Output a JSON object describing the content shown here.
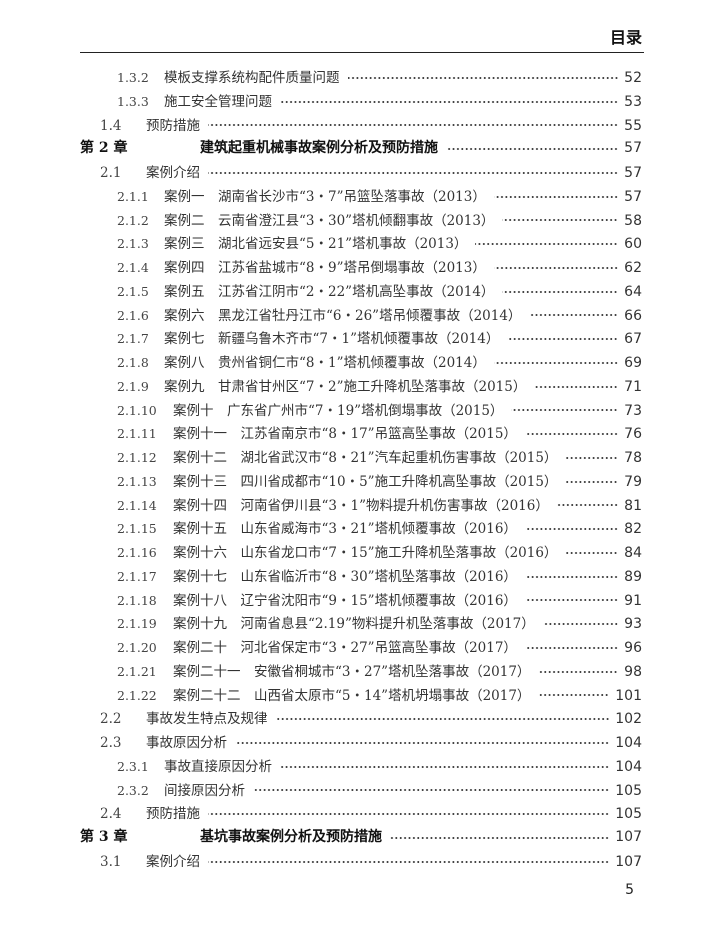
{
  "header": {
    "title": "目录"
  },
  "toc": [
    {
      "level": 2,
      "num": "1.3.2",
      "title": "模板支撑系统构配件质量问题",
      "page": "52"
    },
    {
      "level": 2,
      "num": "1.3.3",
      "title": "施工安全管理问题",
      "page": "53"
    },
    {
      "level": 1,
      "num": "1.4",
      "title": "预防措施",
      "page": "55"
    },
    {
      "level": 0,
      "num": "第 2 章",
      "title": "建筑起重机械事故案例分析及预防措施",
      "page": "57"
    },
    {
      "level": 1,
      "num": "2.1",
      "title": "案例介绍",
      "page": "57"
    },
    {
      "level": 2,
      "num": "2.1.1",
      "title": "案例一　湖南省长沙市“3・7”吊篮坠落事故（2013）",
      "page": "57"
    },
    {
      "level": 2,
      "num": "2.1.2",
      "title": "案例二　云南省澄江县“3・30”塔机倾翻事故（2013）",
      "page": "58"
    },
    {
      "level": 2,
      "num": "2.1.3",
      "title": "案例三　湖北省远安县“5・21”塔机事故（2013）",
      "page": "60"
    },
    {
      "level": 2,
      "num": "2.1.4",
      "title": "案例四　江苏省盐城市“8・9”塔吊倒塌事故（2013）",
      "page": "62"
    },
    {
      "level": 2,
      "num": "2.1.5",
      "title": "案例五　江苏省江阴市“2・22”塔机高坠事故（2014）",
      "page": "64"
    },
    {
      "level": 2,
      "num": "2.1.6",
      "title": "案例六　黑龙江省牡丹江市“6・26”塔吊倾覆事故（2014）",
      "page": "66"
    },
    {
      "level": 2,
      "num": "2.1.7",
      "title": "案例七　新疆乌鲁木齐市“7・1”塔机倾覆事故（2014）",
      "page": "67"
    },
    {
      "level": 2,
      "num": "2.1.8",
      "title": "案例八　贵州省铜仁市“8・1”塔机倾覆事故（2014）",
      "page": "69"
    },
    {
      "level": 2,
      "num": "2.1.9",
      "title": "案例九　甘肃省甘州区“7・2”施工升降机坠落事故（2015）",
      "page": "71"
    },
    {
      "level": 2,
      "num": "2.1.10",
      "title": "案例十　广东省广州市“7・19”塔机倒塌事故（2015）",
      "page": "73"
    },
    {
      "level": 2,
      "num": "2.1.11",
      "title": "案例十一　江苏省南京市“8・17”吊篮高坠事故（2015）",
      "page": "76"
    },
    {
      "level": 2,
      "num": "2.1.12",
      "title": "案例十二　湖北省武汉市“8・21”汽车起重机伤害事故（2015）",
      "page": "78"
    },
    {
      "level": 2,
      "num": "2.1.13",
      "title": "案例十三　四川省成都市“10・5”施工升降机高坠事故（2015）",
      "page": "79"
    },
    {
      "level": 2,
      "num": "2.1.14",
      "title": "案例十四　河南省伊川县“3・1”物料提升机伤害事故（2016）",
      "page": "81"
    },
    {
      "level": 2,
      "num": "2.1.15",
      "title": "案例十五　山东省威海市“3・21”塔机倾覆事故（2016）",
      "page": "82"
    },
    {
      "level": 2,
      "num": "2.1.16",
      "title": "案例十六　山东省龙口市“7・15”施工升降机坠落事故（2016）",
      "page": "84"
    },
    {
      "level": 2,
      "num": "2.1.17",
      "title": "案例十七　山东省临沂市“8・30”塔机坠落事故（2016）",
      "page": "89"
    },
    {
      "level": 2,
      "num": "2.1.18",
      "title": "案例十八　辽宁省沈阳市“9・15”塔机倾覆事故（2016）",
      "page": "91"
    },
    {
      "level": 2,
      "num": "2.1.19",
      "title": "案例十九　河南省息县“2.19”物料提升机坠落事故（2017）",
      "page": "93"
    },
    {
      "level": 2,
      "num": "2.1.20",
      "title": "案例二十　河北省保定市“3・27”吊篮高坠事故（2017）",
      "page": "96"
    },
    {
      "level": 2,
      "num": "2.1.21",
      "title": "案例二十一　安徽省桐城市“3・27”塔机坠落事故（2017）",
      "page": "98"
    },
    {
      "level": 2,
      "num": "2.1.22",
      "title": "案例二十二　山西省太原市“5・14”塔机坍塌事故（2017）",
      "page": "101"
    },
    {
      "level": 1,
      "num": "2.2",
      "title": "事故发生特点及规律",
      "page": "102"
    },
    {
      "level": 1,
      "num": "2.3",
      "title": "事故原因分析",
      "page": "104"
    },
    {
      "level": 2,
      "num": "2.3.1",
      "title": "事故直接原因分析",
      "page": "104"
    },
    {
      "level": 2,
      "num": "2.3.2",
      "title": "间接原因分析",
      "page": "105"
    },
    {
      "level": 1,
      "num": "2.4",
      "title": "预防措施",
      "page": "105"
    },
    {
      "level": 0,
      "num": "第 3 章",
      "title": "基坑事故案例分析及预防措施",
      "page": "107"
    },
    {
      "level": 1,
      "num": "3.1",
      "title": "案例介绍",
      "page": "107"
    }
  ],
  "footer": {
    "page_number": "5"
  }
}
